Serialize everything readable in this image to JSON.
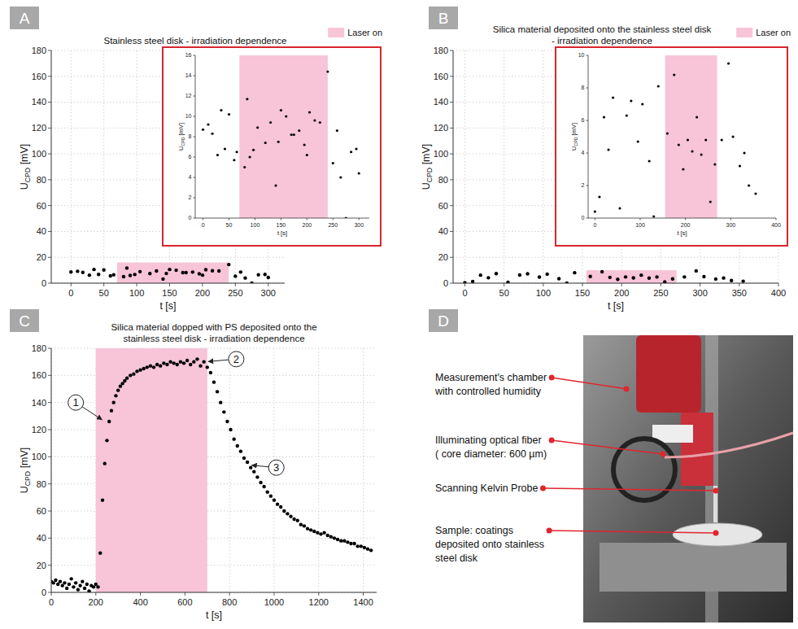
{
  "chart_data": [
    {
      "type": "scatter",
      "panel_label": "A",
      "title": "Stainless steel disk - irradiation dependence",
      "xlabel": "t [s]",
      "ylabel": [
        "U",
        "CPD",
        " [mV]"
      ],
      "x": [
        0,
        10,
        18,
        28,
        35,
        42,
        50,
        60,
        65,
        80,
        85,
        90,
        97,
        105,
        120,
        130,
        140,
        145,
        150,
        160,
        170,
        175,
        185,
        195,
        200,
        205,
        215,
        225,
        240,
        250,
        258,
        265,
        275,
        285,
        295,
        300
      ],
      "values": [
        8.7,
        9.2,
        8.3,
        6.2,
        10.6,
        6.8,
        10.2,
        5.7,
        6.5,
        5.0,
        11.7,
        6.0,
        6.7,
        8.9,
        7.4,
        9.4,
        3.2,
        7.5,
        10.6,
        10.0,
        8.2,
        8.2,
        8.6,
        7.2,
        6.2,
        10.4,
        9.6,
        9.4,
        14.4,
        5.4,
        8.6,
        4.0,
        0.0,
        6.5,
        6.8,
        4.4
      ],
      "color": "#000000",
      "marker": "circle",
      "xlim": [
        -30,
        325
      ],
      "xticks": [
        0,
        50,
        100,
        150,
        200,
        250,
        300
      ],
      "ylim": [
        0,
        180
      ],
      "yticks": [
        0,
        20,
        40,
        60,
        80,
        100,
        120,
        140,
        160,
        180
      ],
      "grid": true,
      "legend": "top-right",
      "regions": [
        {
          "name": "Laser on",
          "x0": 70,
          "x1": 240,
          "y0": 0,
          "y1": 16,
          "color": "#f7c4d8"
        }
      ],
      "inset": {
        "type": "scatter",
        "xlabel": "t [s]",
        "ylabel": [
          "U",
          "CPD",
          " [mV]"
        ],
        "x": [
          0,
          10,
          18,
          28,
          35,
          42,
          50,
          60,
          65,
          80,
          85,
          90,
          97,
          105,
          120,
          130,
          140,
          145,
          150,
          160,
          170,
          175,
          185,
          195,
          200,
          205,
          215,
          225,
          240,
          250,
          258,
          265,
          275,
          285,
          295,
          300
        ],
        "values": [
          8.7,
          9.2,
          8.3,
          6.2,
          10.6,
          6.8,
          10.2,
          5.7,
          6.5,
          5.0,
          11.7,
          6.0,
          6.7,
          8.9,
          7.4,
          9.4,
          3.2,
          7.5,
          10.6,
          10.0,
          8.2,
          8.2,
          8.6,
          7.2,
          6.2,
          10.4,
          9.6,
          9.4,
          14.4,
          5.4,
          8.6,
          4.0,
          0.0,
          6.5,
          6.8,
          4.4
        ],
        "color": "#000000",
        "marker": "circle",
        "xlim": [
          -15,
          320
        ],
        "xticks": [
          0,
          50,
          100,
          150,
          200,
          250,
          300
        ],
        "ylim": [
          0,
          16
        ],
        "yticks": [
          0,
          2,
          4,
          6,
          8,
          10,
          12,
          14,
          16
        ],
        "grid": false,
        "regions": [
          {
            "x0": 70,
            "x1": 240,
            "y0": 0,
            "y1": 16,
            "color": "#f7c4d8"
          }
        ]
      }
    },
    {
      "type": "scatter",
      "panel_label": "B",
      "title": "Silica material deposited onto the stainless steel disk - irradiation dependence",
      "xlabel": "t [s]",
      "ylabel": [
        "U",
        "CPD",
        " [mV]"
      ],
      "x": [
        0,
        10,
        20,
        30,
        40,
        55,
        70,
        80,
        95,
        105,
        120,
        130,
        140,
        160,
        175,
        185,
        195,
        205,
        215,
        225,
        235,
        245,
        255,
        265,
        280,
        295,
        305,
        320,
        330,
        340,
        355
      ],
      "values": [
        0.4,
        1.3,
        6.2,
        4.2,
        7.4,
        0.6,
        6.3,
        7.2,
        4.7,
        7.0,
        3.5,
        0.1,
        8.1,
        5.2,
        8.8,
        4.5,
        3.0,
        4.8,
        4.1,
        6.2,
        3.9,
        4.8,
        1.0,
        3.3,
        4.8,
        9.5,
        5.0,
        3.2,
        4.0,
        2.0,
        1.5
      ],
      "color": "#000000",
      "marker": "circle",
      "xlim": [
        -15,
        400
      ],
      "xticks": [
        0,
        50,
        100,
        150,
        200,
        250,
        300,
        350,
        400
      ],
      "ylim": [
        0,
        180
      ],
      "yticks": [
        0,
        20,
        40,
        60,
        80,
        100,
        120,
        140,
        160,
        180
      ],
      "grid": true,
      "legend": "top-right",
      "regions": [
        {
          "name": "Laser on",
          "x0": 155,
          "x1": 270,
          "y0": 0,
          "y1": 10,
          "color": "#f7c4d8"
        }
      ],
      "inset": {
        "type": "scatter",
        "xlabel": "t [s]",
        "ylabel": [
          "U",
          "CPD",
          " [mV]"
        ],
        "x": [
          0,
          10,
          20,
          30,
          40,
          55,
          70,
          80,
          95,
          105,
          120,
          130,
          140,
          160,
          175,
          185,
          195,
          205,
          215,
          225,
          235,
          245,
          255,
          265,
          280,
          295,
          305,
          320,
          330,
          340,
          355
        ],
        "values": [
          0.4,
          1.3,
          6.2,
          4.2,
          7.4,
          0.6,
          6.3,
          7.2,
          4.7,
          7.0,
          3.5,
          0.1,
          8.1,
          5.2,
          8.8,
          4.5,
          3.0,
          4.8,
          4.1,
          6.2,
          3.9,
          4.8,
          1.0,
          3.3,
          4.8,
          9.5,
          5.0,
          3.2,
          4.0,
          2.0,
          1.5
        ],
        "color": "#000000",
        "marker": "circle",
        "xlim": [
          -15,
          400
        ],
        "xticks": [
          0,
          100,
          200,
          300,
          400
        ],
        "ylim": [
          0,
          10
        ],
        "yticks": [
          0,
          2,
          4,
          6,
          8,
          10
        ],
        "grid": false,
        "regions": [
          {
            "x0": 155,
            "x1": 270,
            "y0": 0,
            "y1": 10,
            "color": "#f7c4d8"
          }
        ]
      }
    },
    {
      "type": "scatter",
      "panel_label": "C",
      "title": "Silica material dopped with PS deposited onto the stainless steel disk - irradiation dependence",
      "xlabel": "t [s]",
      "ylabel": [
        "U",
        "CPD",
        " [mV]"
      ],
      "x": [
        0,
        10,
        20,
        30,
        40,
        50,
        60,
        70,
        80,
        90,
        100,
        110,
        120,
        130,
        140,
        150,
        160,
        170,
        180,
        190,
        200,
        210,
        220,
        230,
        240,
        250,
        260,
        270,
        280,
        290,
        300,
        310,
        320,
        330,
        340,
        355,
        370,
        385,
        400,
        415,
        430,
        445,
        460,
        475,
        490,
        505,
        520,
        535,
        550,
        565,
        580,
        595,
        610,
        625,
        640,
        655,
        670,
        685,
        700,
        715,
        730,
        745,
        760,
        775,
        790,
        805,
        820,
        835,
        850,
        865,
        880,
        895,
        910,
        925,
        940,
        955,
        970,
        985,
        1000,
        1015,
        1030,
        1045,
        1060,
        1075,
        1090,
        1105,
        1120,
        1135,
        1150,
        1165,
        1180,
        1195,
        1210,
        1225,
        1240,
        1255,
        1270,
        1285,
        1300,
        1315,
        1330,
        1345,
        1360,
        1375,
        1390,
        1405,
        1420,
        1435
      ],
      "values": [
        8,
        7,
        9,
        6,
        8,
        5,
        7,
        3,
        6,
        10,
        4,
        7,
        2,
        5,
        8,
        3,
        6,
        1,
        5,
        4,
        6,
        4,
        29,
        68,
        95,
        112,
        126,
        134,
        140,
        145,
        149,
        152,
        154,
        156,
        158,
        160,
        161,
        163,
        164,
        165,
        166,
        167,
        166,
        168,
        167,
        169,
        168,
        170,
        169,
        168,
        170,
        169,
        171,
        168,
        170,
        172,
        167,
        170,
        166,
        162,
        155,
        148,
        140,
        133,
        126,
        120,
        113,
        108,
        104,
        99,
        96,
        92,
        89,
        85,
        81,
        78,
        74,
        71,
        68,
        65,
        63,
        60,
        58,
        56,
        54,
        53,
        50,
        49,
        47,
        46,
        45,
        44,
        43,
        44,
        42,
        41,
        40,
        39,
        38,
        38,
        37,
        36,
        36,
        34,
        34,
        33,
        32,
        31
      ],
      "color": "#000000",
      "marker": "circle",
      "xlim": [
        0,
        1460
      ],
      "xticks": [
        0,
        200,
        400,
        600,
        800,
        1000,
        1200,
        1400
      ],
      "ylim": [
        0,
        180
      ],
      "yticks": [
        0,
        20,
        40,
        60,
        80,
        100,
        120,
        140,
        160,
        180
      ],
      "grid": true,
      "regions": [
        {
          "x0": 200,
          "x1": 700,
          "y0": 0,
          "y1": 180,
          "color": "#f7c4d8"
        }
      ],
      "annotations": [
        {
          "text": "1",
          "x": 240,
          "y": 126,
          "label_x": 110,
          "label_y": 140
        },
        {
          "text": "2",
          "x": 690,
          "y": 170,
          "label_x": 830,
          "label_y": 172
        },
        {
          "text": "3",
          "x": 885,
          "y": 94,
          "label_x": 1010,
          "label_y": 92
        }
      ]
    }
  ],
  "photo_panel": {
    "panel_label": "D",
    "labels": [
      {
        "lines": [
          "Measurement's chamber",
          "with controlled humidity"
        ]
      },
      {
        "lines": [
          "Illuminating optical fiber",
          "( core diameter: 600 µm)"
        ]
      },
      {
        "lines": [
          "Scanning Kelvin Probe"
        ]
      },
      {
        "lines": [
          "Sample: coatings",
          "deposited onto stainless",
          "steel disk"
        ]
      }
    ]
  }
}
